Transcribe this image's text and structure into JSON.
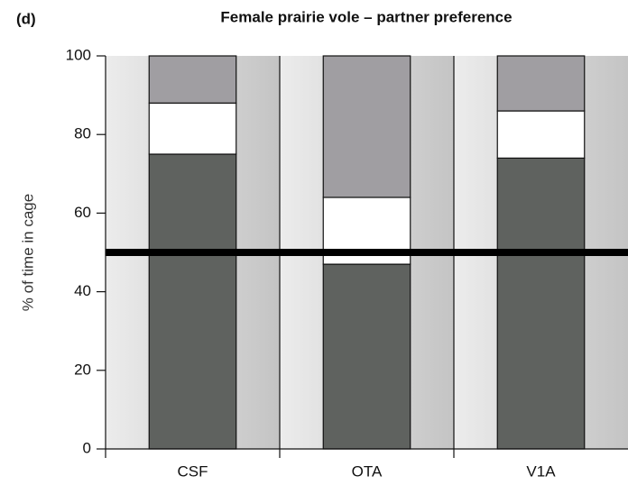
{
  "chart_data": {
    "type": "stacked_bar",
    "panel_label": "(d)",
    "title": "Female prairie vole – partner preference",
    "y_label": "% of time in cage",
    "categories": [
      "CSF",
      "OTA",
      "V1A"
    ],
    "series": [
      {
        "color": "#5f625f",
        "values": [
          75,
          47,
          74
        ]
      },
      {
        "color": "#ffffff",
        "values": [
          13,
          17,
          12
        ]
      },
      {
        "color": "#a09ea2",
        "values": [
          12,
          36,
          14
        ]
      }
    ],
    "reference_line": 50,
    "ylim": [
      0,
      100
    ],
    "yticks": [
      0,
      20,
      40,
      60,
      80,
      100
    ]
  }
}
